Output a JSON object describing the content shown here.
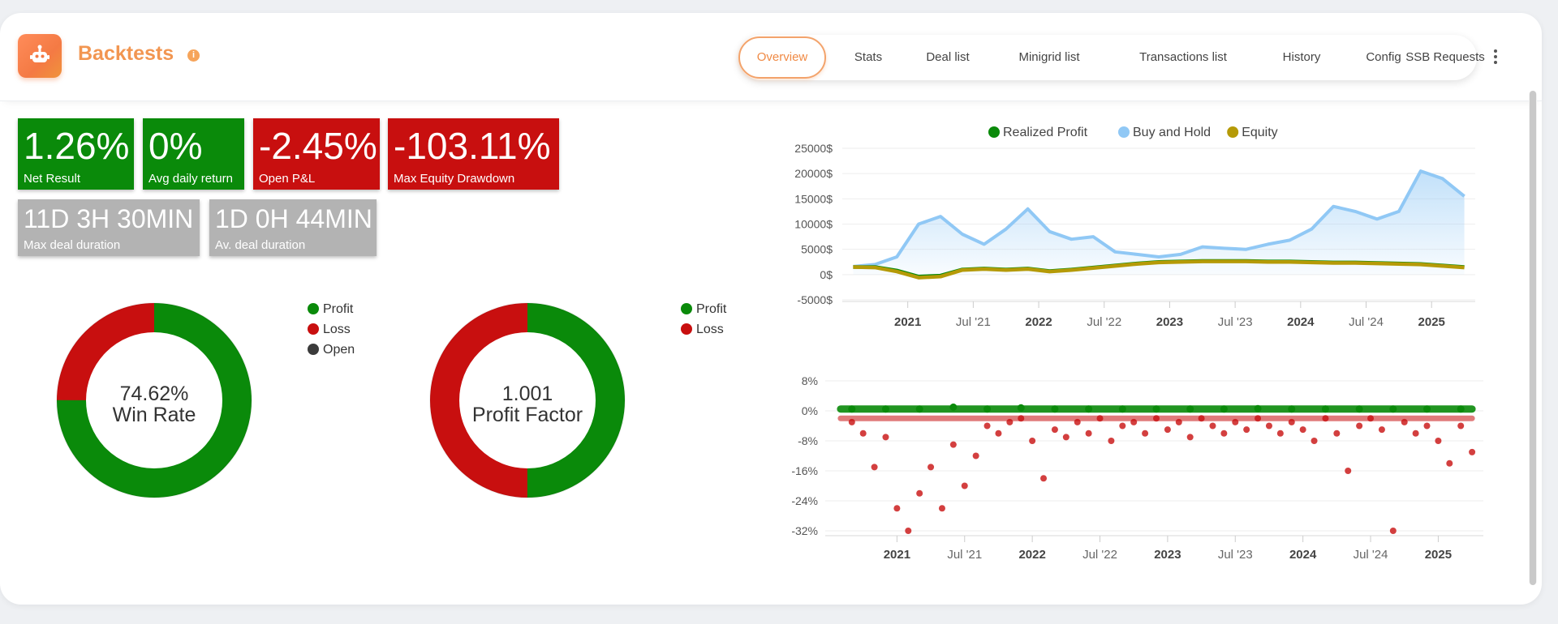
{
  "header": {
    "title": "Backtests",
    "info_icon": "i",
    "tabs": [
      {
        "label": "Overview",
        "active": true
      },
      {
        "label": "Stats"
      },
      {
        "label": "Deal list"
      },
      {
        "label": "Minigrid list"
      },
      {
        "label": "Transactions list"
      },
      {
        "label": "History"
      },
      {
        "label": "Config"
      },
      {
        "label": "SSB Requests"
      }
    ]
  },
  "stats": {
    "net_result": {
      "value": "1.26%",
      "label": "Net Result"
    },
    "avg_daily_return": {
      "value": "0%",
      "label": "Avg daily return"
    },
    "open_pnl": {
      "value": "-2.45%",
      "label": "Open P&L"
    },
    "max_equity_drawdown": {
      "value": "-103.11%",
      "label": "Max Equity Drawdown"
    },
    "max_deal_duration": {
      "value": "11D 3H 30MIN",
      "label": "Max deal duration"
    },
    "avg_deal_duration": {
      "value": "1D 0H 44MIN",
      "label": "Av. deal duration"
    }
  },
  "win_rate": {
    "value": "74.62%",
    "label": "Win Rate",
    "legend": [
      "Profit",
      "Loss",
      "Open"
    ],
    "profit_share": 0.75,
    "loss_share": 0.25,
    "open_share": 0
  },
  "profit_factor": {
    "value": "1.001",
    "label": "Profit Factor",
    "legend": [
      "Profit",
      "Loss"
    ],
    "profit_share": 0.5,
    "loss_share": 0.5
  },
  "colors": {
    "profit": "#0a8a0a",
    "loss": "#c80f0f",
    "open": "#3b3b3b",
    "buy_hold": "#90c8f5",
    "equity": "#b59a07",
    "accent": "#f29651"
  },
  "chart_data": [
    {
      "type": "line",
      "series": [
        {
          "name": "Realized Profit",
          "color": "#0a8a0a",
          "x": [
            "2020-08",
            "2020-10",
            "2020-12",
            "2021-02",
            "2021-04",
            "2021-06",
            "2021-08",
            "2021-10",
            "2021-12",
            "2022-02",
            "2022-04",
            "2022-06",
            "2022-08",
            "2022-10",
            "2022-12",
            "2023-02",
            "2023-04",
            "2023-06",
            "2023-08",
            "2023-10",
            "2023-12",
            "2024-02",
            "2024-04",
            "2024-06",
            "2024-08",
            "2024-10",
            "2024-12",
            "2025-02",
            "2025-04"
          ],
          "values": [
            1500,
            1500,
            800,
            -400,
            -200,
            1000,
            1200,
            1000,
            1200,
            700,
            1000,
            1400,
            1800,
            2200,
            2500,
            2600,
            2700,
            2700,
            2700,
            2600,
            2600,
            2500,
            2400,
            2400,
            2300,
            2200,
            2100,
            1800,
            1500
          ]
        },
        {
          "name": "Buy and Hold",
          "color": "#90c8f5",
          "x": [
            "2020-08",
            "2020-10",
            "2020-12",
            "2021-02",
            "2021-04",
            "2021-06",
            "2021-08",
            "2021-10",
            "2021-12",
            "2022-02",
            "2022-04",
            "2022-06",
            "2022-08",
            "2022-10",
            "2022-12",
            "2023-02",
            "2023-04",
            "2023-06",
            "2023-08",
            "2023-10",
            "2023-12",
            "2024-02",
            "2024-04",
            "2024-06",
            "2024-08",
            "2024-10",
            "2024-12",
            "2025-02",
            "2025-04"
          ],
          "values": [
            1600,
            2000,
            3500,
            10000,
            11500,
            8000,
            6000,
            9000,
            13000,
            8500,
            7000,
            7500,
            4500,
            4000,
            3500,
            4000,
            5500,
            5200,
            5000,
            6000,
            6800,
            9000,
            13500,
            12500,
            11000,
            12500,
            20500,
            19000,
            15500
          ]
        },
        {
          "name": "Equity",
          "color": "#b59a07",
          "x": [
            "2020-08",
            "2020-10",
            "2020-12",
            "2021-02",
            "2021-04",
            "2021-06",
            "2021-08",
            "2021-10",
            "2021-12",
            "2022-02",
            "2022-04",
            "2022-06",
            "2022-08",
            "2022-10",
            "2022-12",
            "2023-02",
            "2023-04",
            "2023-06",
            "2023-08",
            "2023-10",
            "2023-12",
            "2024-02",
            "2024-04",
            "2024-06",
            "2024-08",
            "2024-10",
            "2024-12",
            "2025-02",
            "2025-04"
          ],
          "values": [
            1500,
            1400,
            600,
            -600,
            -400,
            900,
            1100,
            900,
            1100,
            600,
            900,
            1300,
            1700,
            2100,
            2400,
            2500,
            2600,
            2600,
            2600,
            2500,
            2500,
            2400,
            2300,
            2300,
            2200,
            2100,
            2000,
            1700,
            1400
          ]
        }
      ],
      "y_ticks": [
        "25000$",
        "20000$",
        "15000$",
        "10000$",
        "5000$",
        "0$",
        "-5000$"
      ],
      "x_ticks": [
        "2021",
        "Jul '21",
        "2022",
        "Jul '22",
        "2023",
        "Jul '23",
        "2024",
        "Jul '24",
        "2025"
      ],
      "ylim": [
        -5000,
        25000
      ],
      "legend_position": "top-center",
      "grid": true
    },
    {
      "type": "scatter",
      "series": [
        {
          "name": "Profit",
          "color": "#0a8a0a",
          "x": [
            "2020-09",
            "2020-12",
            "2021-03",
            "2021-06",
            "2021-09",
            "2021-12",
            "2022-03",
            "2022-06",
            "2022-09",
            "2022-12",
            "2023-03",
            "2023-06",
            "2023-09",
            "2023-12",
            "2024-03",
            "2024-06",
            "2024-09",
            "2024-12",
            "2025-03"
          ],
          "values": [
            0.5,
            0.5,
            0.5,
            1,
            0.5,
            0.8,
            0.5,
            0.5,
            0.5,
            0.5,
            0.5,
            0.5,
            0.6,
            0.5,
            0.5,
            0.5,
            0.5,
            0.5,
            0.5
          ]
        },
        {
          "name": "Loss",
          "color": "#c80f0f",
          "x": [
            "2020-09",
            "2020-10",
            "2020-11",
            "2020-12",
            "2021-01",
            "2021-02",
            "2021-03",
            "2021-04",
            "2021-05",
            "2021-06",
            "2021-07",
            "2021-08",
            "2021-09",
            "2021-10",
            "2021-11",
            "2021-12",
            "2022-01",
            "2022-02",
            "2022-03",
            "2022-04",
            "2022-05",
            "2022-06",
            "2022-07",
            "2022-08",
            "2022-09",
            "2022-10",
            "2022-11",
            "2022-12",
            "2023-01",
            "2023-02",
            "2023-03",
            "2023-04",
            "2023-05",
            "2023-06",
            "2023-07",
            "2023-08",
            "2023-09",
            "2023-10",
            "2023-11",
            "2023-12",
            "2024-01",
            "2024-02",
            "2024-03",
            "2024-04",
            "2024-05",
            "2024-06",
            "2024-07",
            "2024-08",
            "2024-09",
            "2024-10",
            "2024-11",
            "2024-12",
            "2025-01",
            "2025-02",
            "2025-03",
            "2025-04"
          ],
          "values": [
            -3,
            -6,
            -15,
            -7,
            -26,
            -32,
            -22,
            -15,
            -26,
            -9,
            -20,
            -12,
            -4,
            -6,
            -3,
            -2,
            -8,
            -18,
            -5,
            -7,
            -3,
            -6,
            -2,
            -8,
            -4,
            -3,
            -6,
            -2,
            -5,
            -3,
            -7,
            -2,
            -4,
            -6,
            -3,
            -5,
            -2,
            -4,
            -6,
            -3,
            -5,
            -8,
            -2,
            -6,
            -16,
            -4,
            -2,
            -5,
            -32,
            -3,
            -6,
            -4,
            -8,
            -14,
            -4,
            -11
          ]
        }
      ],
      "y_ticks": [
        "8%",
        "0%",
        "-8%",
        "-16%",
        "-24%",
        "-32%"
      ],
      "x_ticks": [
        "2021",
        "Jul '21",
        "2022",
        "Jul '22",
        "2023",
        "Jul '23",
        "2024",
        "Jul '24",
        "2025"
      ],
      "ylim": [
        -32,
        8
      ],
      "grid": true
    }
  ]
}
